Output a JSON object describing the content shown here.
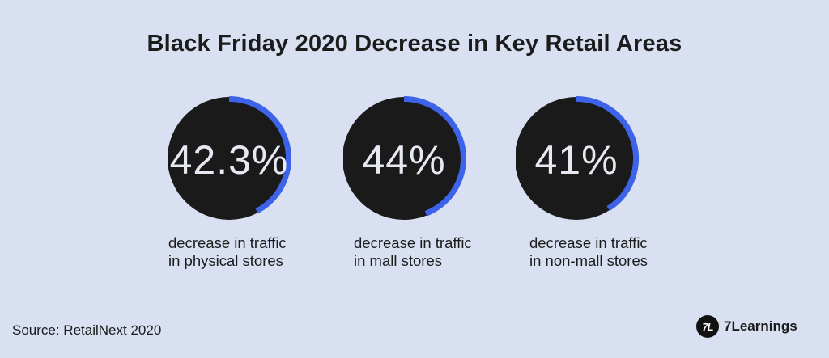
{
  "title": "Black Friday 2020 Decrease in Key Retail Areas",
  "source": "Source: RetailNext 2020",
  "brand": {
    "logo_text": "7L",
    "name": "7Learnings"
  },
  "colors": {
    "background": "#d8e0f1",
    "circle": "#1a1a1a",
    "accent": "#3d63e8",
    "value_text": "#e6e9f2"
  },
  "chart_data": {
    "type": "gauge",
    "title": "Black Friday 2020 Decrease in Key Retail Areas",
    "unit": "%",
    "items": [
      {
        "value": 42.3,
        "display": "42.3%",
        "caption_lines": [
          "decrease in traffic",
          "in physical stores"
        ]
      },
      {
        "value": 44,
        "display": "44%",
        "caption_lines": [
          "decrease in traffic",
          "in mall stores"
        ]
      },
      {
        "value": 41,
        "display": "41%",
        "caption_lines": [
          "decrease in traffic",
          "in non-mall stores"
        ]
      }
    ]
  }
}
